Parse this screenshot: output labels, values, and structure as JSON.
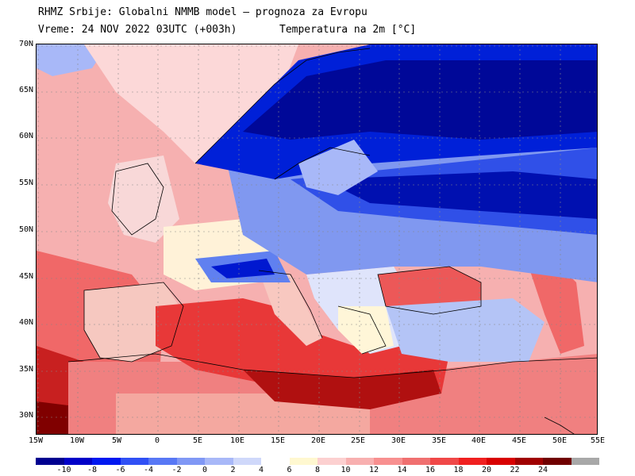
{
  "header": {
    "line1": "RHMZ Srbije: Globalni NMMB model — prognoza za Evropu",
    "line2_time": "Vreme: 24 NOV 2022 03UTC (+003h)",
    "line2_var": "Temperatura na 2m [°C]"
  },
  "axes": {
    "lat_labels": [
      "70N",
      "65N",
      "60N",
      "55N",
      "50N",
      "45N",
      "40N",
      "35N",
      "30N"
    ],
    "lon_labels": [
      "15W",
      "10W",
      "5W",
      "0",
      "5E",
      "10E",
      "15E",
      "20E",
      "25E",
      "30E",
      "35E",
      "40E",
      "45E",
      "50E",
      "55E"
    ]
  },
  "legend": {
    "labels": [
      "-10",
      "-8",
      "-6",
      "-4",
      "-2",
      "0",
      "2",
      "4",
      "6",
      "8",
      "10",
      "12",
      "14",
      "16",
      "18",
      "20",
      "22",
      "24"
    ],
    "colors": [
      "#000090",
      "#0000c8",
      "#0018f0",
      "#3050f5",
      "#5878f5",
      "#8098f5",
      "#a8b8f8",
      "#cfd8fa",
      "#ffffff",
      "#fff8d0",
      "#fcd0d0",
      "#f8b0b0",
      "#f89090",
      "#f07070",
      "#f04848",
      "#f02020",
      "#d80000",
      "#a00000",
      "#700000",
      "#a8a8a8"
    ]
  },
  "map": {
    "land_color": "#f8f0c8",
    "sea_warm": "#f06060",
    "atlantic": "#f4a0a0",
    "cold_core": "#0010a0"
  }
}
